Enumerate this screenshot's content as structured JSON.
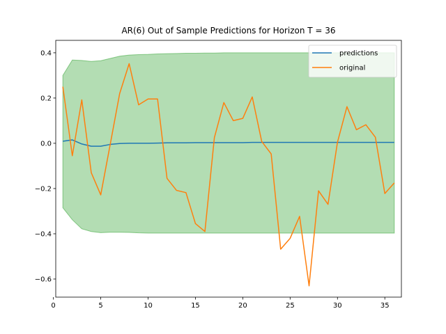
{
  "chart_data": {
    "type": "line",
    "title": "AR(6) Out of Sample Predictions for Horizon T = 36",
    "xlabel": "",
    "ylabel": "",
    "xlim": [
      0.25,
      36.75
    ],
    "ylim": [
      -0.68,
      0.455
    ],
    "xticks": [
      0,
      5,
      10,
      15,
      20,
      25,
      30,
      35
    ],
    "yticks": [
      -0.6,
      -0.4,
      -0.2,
      0.0,
      0.2,
      0.4
    ],
    "ytick_labels": [
      "−0.6",
      "−0.4",
      "−0.2",
      "0.0",
      "0.2",
      "0.4"
    ],
    "grid": false,
    "legend": {
      "placement": "top-right"
    },
    "x": [
      1,
      2,
      3,
      4,
      5,
      6,
      7,
      8,
      9,
      10,
      11,
      12,
      13,
      14,
      15,
      16,
      17,
      18,
      19,
      20,
      21,
      22,
      23,
      24,
      25,
      26,
      27,
      28,
      29,
      30,
      31,
      32,
      33,
      34,
      35,
      36
    ],
    "series": [
      {
        "name": "predictions",
        "color": "#1f77b4",
        "values": [
          0.009,
          0.015,
          -0.003,
          -0.013,
          -0.013,
          -0.005,
          -0.001,
          0.0,
          0.0,
          0.0,
          0.001,
          0.002,
          0.002,
          0.002,
          0.003,
          0.003,
          0.003,
          0.003,
          0.003,
          0.003,
          0.004,
          0.004,
          0.004,
          0.004,
          0.004,
          0.004,
          0.004,
          0.004,
          0.004,
          0.004,
          0.004,
          0.004,
          0.004,
          0.004,
          0.004,
          0.004
        ]
      },
      {
        "name": "original",
        "color": "#ff7f0e",
        "values": [
          0.25,
          -0.055,
          0.192,
          -0.13,
          -0.228,
          -0.005,
          0.22,
          0.352,
          0.17,
          0.196,
          0.196,
          -0.155,
          -0.208,
          -0.218,
          -0.355,
          -0.39,
          0.025,
          0.18,
          0.1,
          0.11,
          0.205,
          0.008,
          -0.047,
          -0.468,
          -0.42,
          -0.323,
          -0.63,
          -0.21,
          -0.27,
          0.005,
          0.162,
          0.06,
          0.082,
          0.027,
          -0.222,
          -0.175
        ]
      }
    ],
    "band": {
      "color": "#2ca02c",
      "upper": [
        0.3,
        0.368,
        0.366,
        0.362,
        0.365,
        0.375,
        0.385,
        0.39,
        0.392,
        0.393,
        0.395,
        0.396,
        0.397,
        0.398,
        0.398,
        0.399,
        0.399,
        0.4,
        0.4,
        0.4,
        0.4,
        0.4,
        0.4,
        0.4,
        0.4,
        0.4,
        0.4,
        0.4,
        0.4,
        0.4,
        0.4,
        0.4,
        0.4,
        0.4,
        0.4,
        0.4
      ],
      "lower": [
        -0.285,
        -0.338,
        -0.378,
        -0.39,
        -0.395,
        -0.393,
        -0.393,
        -0.394,
        -0.396,
        -0.397,
        -0.397,
        -0.397,
        -0.397,
        -0.397,
        -0.397,
        -0.397,
        -0.397,
        -0.397,
        -0.397,
        -0.397,
        -0.397,
        -0.397,
        -0.397,
        -0.397,
        -0.397,
        -0.397,
        -0.397,
        -0.397,
        -0.397,
        -0.397,
        -0.397,
        -0.397,
        -0.397,
        -0.397,
        -0.397,
        -0.397
      ]
    }
  }
}
